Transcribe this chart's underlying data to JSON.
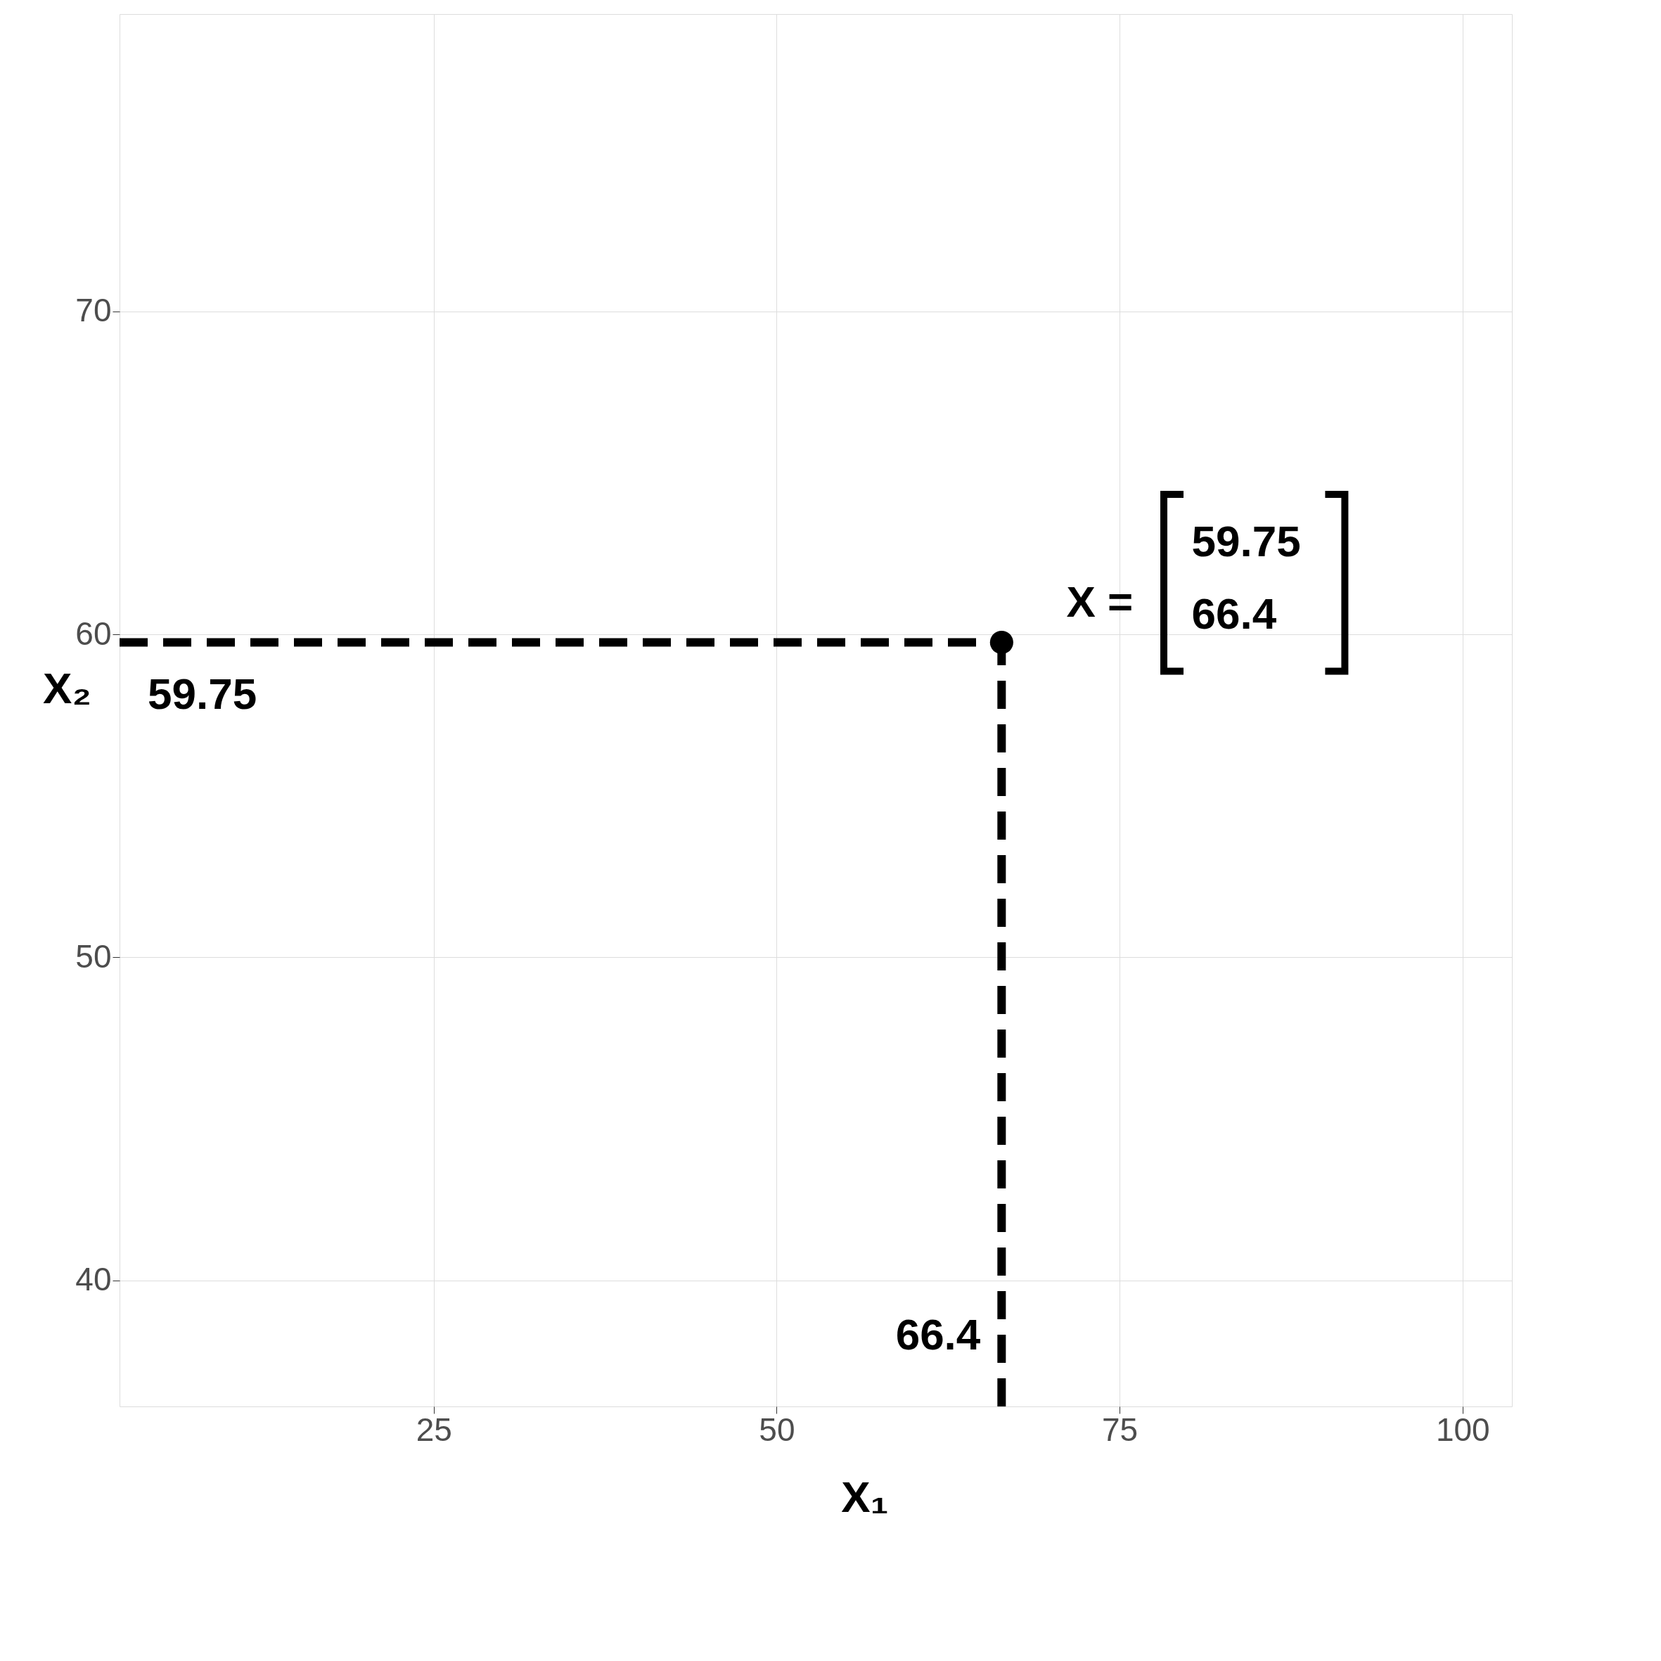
{
  "chart_data": {
    "type": "scatter",
    "xlabel": "X₁",
    "ylabel": "X₂",
    "xlim": [
      2.1,
      103.6
    ],
    "ylim": [
      36.1,
      79.2
    ],
    "xticks": [
      25,
      50,
      75,
      100
    ],
    "yticks": [
      40,
      50,
      60,
      70
    ],
    "grid": true,
    "series": [
      {
        "marker": "circle",
        "color": "#000000",
        "x": [
          66.4
        ],
        "values": [
          59.75
        ]
      }
    ],
    "ref_lines": [
      {
        "axis": "y",
        "value": 59.75,
        "label": "59.75",
        "line_style": "dashed",
        "color": "#000000"
      },
      {
        "axis": "x",
        "value": 66.4,
        "label": "66.4",
        "line_style": "dashed",
        "color": "#000000"
      }
    ],
    "annotations": [
      "X =",
      "59.75",
      "66.4"
    ]
  }
}
